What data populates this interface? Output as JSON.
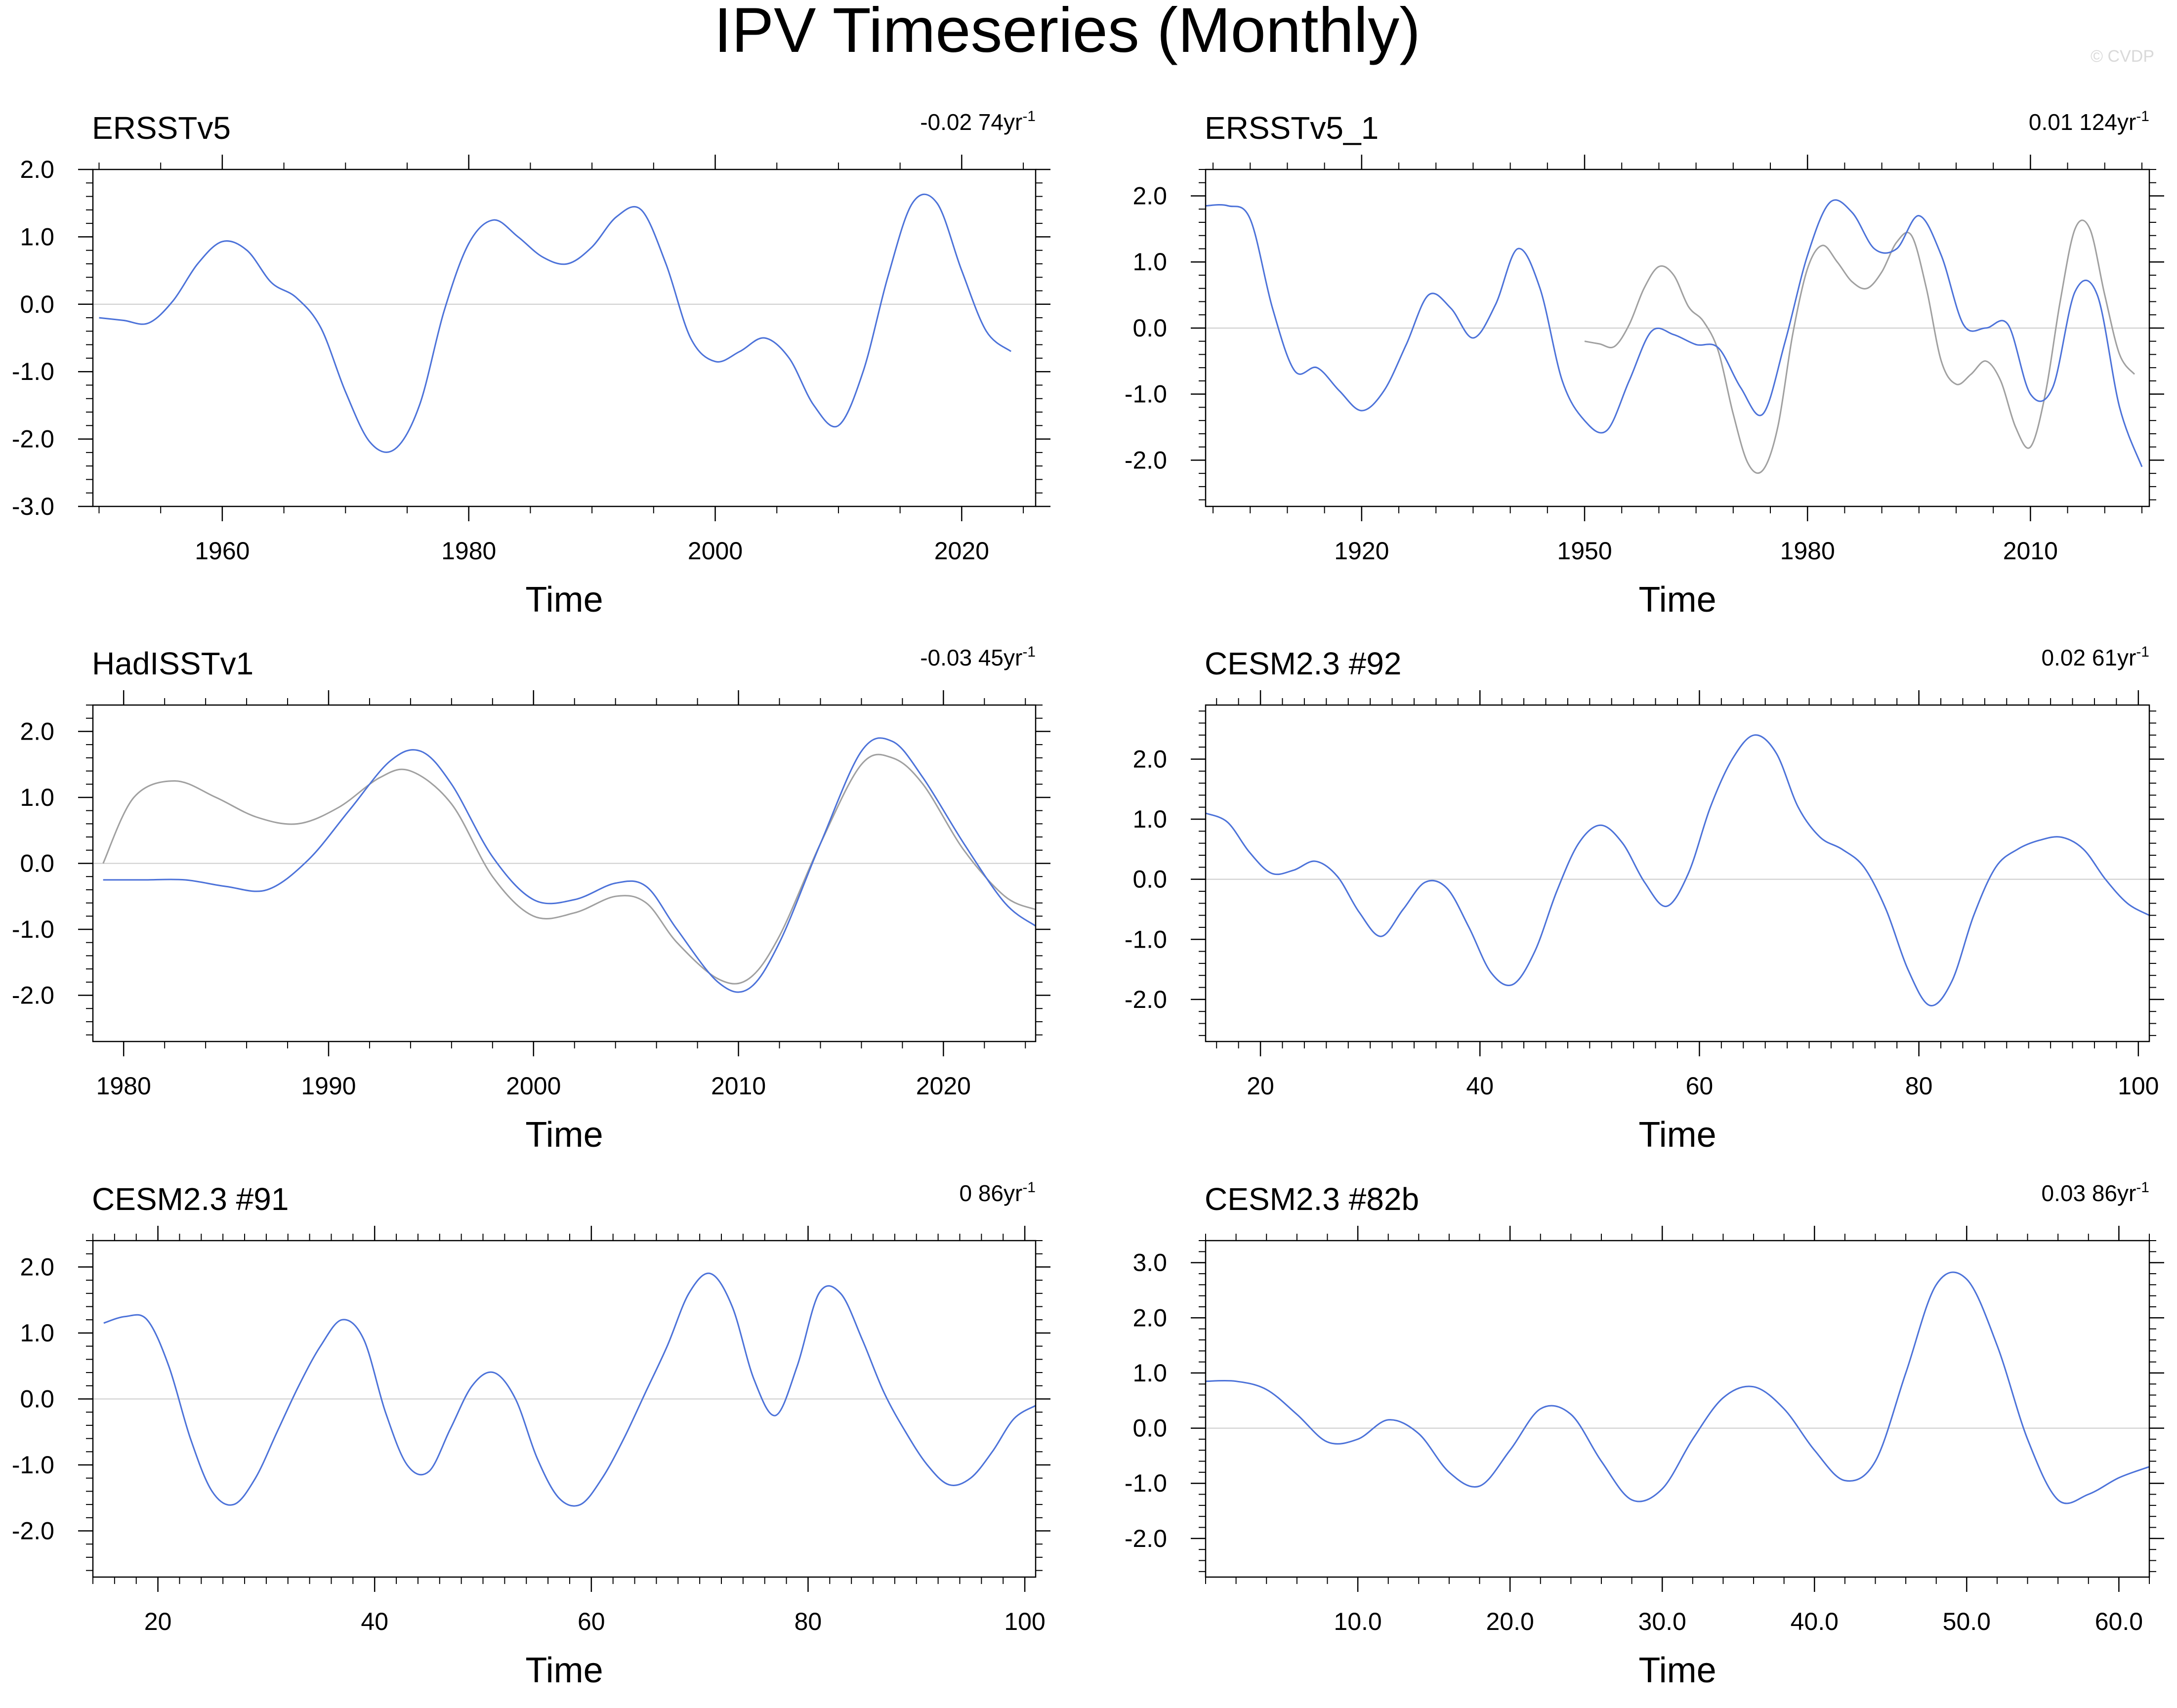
{
  "figure": {
    "title": "IPV Timeseries (Monthly)",
    "watermark": "© CVDP"
  },
  "colors": {
    "primary_series": "#4c72d9",
    "reference_series": "#a0a0a0",
    "zero_line": "#cccccc",
    "axis": "#000000"
  },
  "chart_data": [
    {
      "type": "line",
      "title": "ERSSTv5",
      "trend": "-0.02 74yr",
      "trend_exponent": "-1",
      "xlabel": "Time",
      "ylabel": "",
      "xlim": [
        1949.5,
        2026
      ],
      "ylim": [
        -3.0,
        2.0
      ],
      "xticks": [
        1960,
        1980,
        2000,
        2020
      ],
      "xticklabels": [
        "1960",
        "1980",
        "2000",
        "2020"
      ],
      "xminor_step": 5,
      "yticks": [
        -3.0,
        -2.0,
        -1.0,
        0.0,
        1.0,
        2.0
      ],
      "yticklabels": [
        "-3.0",
        "-2.0",
        "-1.0",
        "0.0",
        "1.0",
        "2.0"
      ],
      "yminor_step": 0.2,
      "series": [
        {
          "name": "ERSSTv5",
          "role": "primary",
          "x": [
            1950,
            1952,
            1954,
            1956,
            1958,
            1960,
            1962,
            1964,
            1966,
            1968,
            1970,
            1972,
            1974,
            1976,
            1978,
            1980,
            1982,
            1984,
            1986,
            1988,
            1990,
            1992,
            1994,
            1996,
            1998,
            2000,
            2002,
            2004,
            2006,
            2008,
            2010,
            2012,
            2014,
            2016,
            2018,
            2020,
            2022,
            2024
          ],
          "values": [
            -0.2,
            -0.24,
            -0.28,
            0.05,
            0.6,
            0.93,
            0.8,
            0.32,
            0.1,
            -0.35,
            -1.3,
            -2.05,
            -2.15,
            -1.5,
            -0.1,
            0.9,
            1.25,
            1.0,
            0.7,
            0.6,
            0.85,
            1.3,
            1.4,
            0.6,
            -0.5,
            -0.85,
            -0.7,
            -0.5,
            -0.8,
            -1.5,
            -1.8,
            -1.0,
            0.4,
            1.5,
            1.5,
            0.5,
            -0.4,
            -0.7
          ]
        }
      ]
    },
    {
      "type": "line",
      "title": "ERSSTv5_1",
      "trend": "0.01 124yr",
      "trend_exponent": "-1",
      "xlabel": "Time",
      "ylabel": "",
      "xlim": [
        1899,
        2026
      ],
      "ylim": [
        -2.7,
        2.4
      ],
      "xticks": [
        1920,
        1950,
        1980,
        2010
      ],
      "xticklabels": [
        "1920",
        "1950",
        "1980",
        "2010"
      ],
      "xminor_step": 5,
      "yticks": [
        -2.0,
        -1.0,
        0.0,
        1.0,
        2.0
      ],
      "yticklabels": [
        "-2.0",
        "-1.0",
        "0.0",
        "1.0",
        "2.0"
      ],
      "yminor_step": 0.2,
      "series": [
        {
          "name": "ERSSTv5_1",
          "role": "primary",
          "x": [
            1899,
            1902,
            1905,
            1908,
            1911,
            1914,
            1917,
            1920,
            1923,
            1926,
            1929,
            1932,
            1935,
            1938,
            1941,
            1944,
            1947,
            1950,
            1953,
            1956,
            1959,
            1962,
            1965,
            1968,
            1971,
            1974,
            1977,
            1980,
            1983,
            1986,
            1989,
            1992,
            1995,
            1998,
            2001,
            2004,
            2007,
            2010,
            2013,
            2016,
            2019,
            2022,
            2025
          ],
          "values": [
            1.85,
            1.85,
            1.65,
            0.3,
            -0.65,
            -0.6,
            -0.95,
            -1.25,
            -0.95,
            -0.25,
            0.5,
            0.3,
            -0.15,
            0.35,
            1.2,
            0.6,
            -0.8,
            -1.4,
            -1.55,
            -0.8,
            -0.05,
            -0.1,
            -0.25,
            -0.3,
            -0.9,
            -1.3,
            -0.2,
            1.1,
            1.9,
            1.75,
            1.2,
            1.2,
            1.7,
            1.1,
            0.05,
            0.0,
            0.05,
            -1.0,
            -0.9,
            0.55,
            0.5,
            -1.2,
            -2.1
          ]
        },
        {
          "name": "ERSSTv5",
          "role": "reference",
          "x": [
            1950,
            1952,
            1954,
            1956,
            1958,
            1960,
            1962,
            1964,
            1966,
            1968,
            1970,
            1972,
            1974,
            1976,
            1978,
            1980,
            1982,
            1984,
            1986,
            1988,
            1990,
            1992,
            1994,
            1996,
            1998,
            2000,
            2002,
            2004,
            2006,
            2008,
            2010,
            2012,
            2014,
            2016,
            2018,
            2020,
            2022,
            2024
          ],
          "values": [
            -0.2,
            -0.24,
            -0.28,
            0.05,
            0.6,
            0.93,
            0.8,
            0.32,
            0.1,
            -0.35,
            -1.3,
            -2.05,
            -2.15,
            -1.5,
            -0.1,
            0.9,
            1.25,
            1.0,
            0.7,
            0.6,
            0.85,
            1.3,
            1.4,
            0.6,
            -0.5,
            -0.85,
            -0.7,
            -0.5,
            -0.8,
            -1.5,
            -1.8,
            -1.0,
            0.4,
            1.5,
            1.5,
            0.5,
            -0.4,
            -0.7
          ]
        }
      ]
    },
    {
      "type": "line",
      "title": "HadISSTv1",
      "trend": "-0.03 45yr",
      "trend_exponent": "-1",
      "xlabel": "Time",
      "ylabel": "",
      "xlim": [
        1978.5,
        2024.5
      ],
      "ylim": [
        -2.7,
        2.4
      ],
      "xticks": [
        1980,
        1990,
        2000,
        2010,
        2020
      ],
      "xticklabels": [
        "1980",
        "1990",
        "2000",
        "2010",
        "2020"
      ],
      "xminor_step": 2,
      "yticks": [
        -2.0,
        -1.0,
        0.0,
        1.0,
        2.0
      ],
      "yticklabels": [
        "-2.0",
        "-1.0",
        "0.0",
        "1.0",
        "2.0"
      ],
      "yminor_step": 0.2,
      "series": [
        {
          "name": "HadISSTv1",
          "role": "primary",
          "x": [
            1979,
            1981,
            1983,
            1985,
            1987,
            1989,
            1991,
            1993,
            1994.5,
            1996,
            1998,
            2000,
            2002,
            2004,
            2005.5,
            2007,
            2009,
            2010.5,
            2012,
            2014,
            2016,
            2017.5,
            2019,
            2021,
            2023,
            2024.5
          ],
          "values": [
            -0.25,
            -0.25,
            -0.25,
            -0.35,
            -0.4,
            0.05,
            0.8,
            1.55,
            1.7,
            1.2,
            0.1,
            -0.55,
            -0.55,
            -0.3,
            -0.35,
            -1.0,
            -1.8,
            -1.9,
            -1.2,
            0.3,
            1.7,
            1.85,
            1.3,
            0.3,
            -0.6,
            -0.95
          ]
        },
        {
          "name": "ERSSTv5",
          "role": "reference",
          "x": [
            1979,
            1980.5,
            1982.5,
            1984.5,
            1986.5,
            1988.5,
            1990.5,
            1992.5,
            1994,
            1996,
            1998,
            2000,
            2002,
            2004,
            2005.5,
            2007,
            2009,
            2010.5,
            2012,
            2014,
            2016,
            2017.5,
            2019,
            2021,
            2023,
            2024.5
          ],
          "values": [
            0.0,
            1.0,
            1.25,
            1.0,
            0.7,
            0.6,
            0.85,
            1.3,
            1.4,
            0.9,
            -0.2,
            -0.8,
            -0.75,
            -0.5,
            -0.6,
            -1.2,
            -1.75,
            -1.75,
            -1.1,
            0.3,
            1.5,
            1.6,
            1.2,
            0.2,
            -0.5,
            -0.7
          ]
        }
      ]
    },
    {
      "type": "line",
      "title": "CESM2.3 #92",
      "trend": "0.02 61yr",
      "trend_exponent": "-1",
      "xlabel": "Time",
      "ylabel": "",
      "xlim": [
        15,
        101
      ],
      "ylim": [
        -2.7,
        2.9
      ],
      "xticks": [
        20,
        40,
        60,
        80,
        100
      ],
      "xticklabels": [
        "20",
        "40",
        "60",
        "80",
        "100"
      ],
      "xminor_step": 2,
      "yticks": [
        -2.0,
        -1.0,
        0.0,
        1.0,
        2.0
      ],
      "yticklabels": [
        "-2.0",
        "-1.0",
        "0.0",
        "1.0",
        "2.0"
      ],
      "yminor_step": 0.2,
      "series": [
        {
          "name": "CESM2.3 #92",
          "role": "primary",
          "x": [
            15,
            17,
            19,
            21,
            23,
            25,
            27,
            29,
            31,
            33,
            35,
            37,
            39,
            41,
            43,
            45,
            47,
            49,
            51,
            53,
            55,
            57,
            59,
            61,
            63,
            65,
            67,
            69,
            71,
            73,
            75,
            77,
            79,
            81,
            83,
            85,
            87,
            89,
            91,
            93,
            95,
            97,
            99,
            101
          ],
          "values": [
            1.1,
            0.95,
            0.45,
            0.1,
            0.15,
            0.3,
            0.05,
            -0.55,
            -0.95,
            -0.5,
            -0.05,
            -0.15,
            -0.8,
            -1.55,
            -1.75,
            -1.2,
            -0.2,
            0.6,
            0.9,
            0.6,
            -0.05,
            -0.45,
            0.1,
            1.2,
            2.0,
            2.4,
            2.1,
            1.2,
            0.7,
            0.5,
            0.2,
            -0.5,
            -1.5,
            -2.1,
            -1.7,
            -0.6,
            0.2,
            0.5,
            0.65,
            0.7,
            0.5,
            0.0,
            -0.4,
            -0.6
          ]
        }
      ]
    },
    {
      "type": "line",
      "title": "CESM2.3 #91",
      "trend": "0 86yr",
      "trend_exponent": "-1",
      "xlabel": "Time",
      "ylabel": "",
      "xlim": [
        14,
        101
      ],
      "ylim": [
        -2.7,
        2.4
      ],
      "xticks": [
        20,
        40,
        60,
        80,
        100
      ],
      "xticklabels": [
        "20",
        "40",
        "60",
        "80",
        "100"
      ],
      "xminor_step": 2,
      "yticks": [
        -2.0,
        -1.0,
        0.0,
        1.0,
        2.0
      ],
      "yticklabels": [
        "-2.0",
        "-1.0",
        "0.0",
        "1.0",
        "2.0"
      ],
      "yminor_step": 0.2,
      "series": [
        {
          "name": "CESM2.3 #91",
          "role": "primary",
          "x": [
            15,
            17,
            19,
            21,
            23,
            25,
            27,
            29,
            31,
            33,
            35,
            37,
            39,
            41,
            43,
            45,
            47,
            49,
            51,
            53,
            55,
            57,
            59,
            61,
            63,
            65,
            67,
            69,
            71,
            73,
            75,
            77,
            79,
            81,
            83,
            85,
            87,
            89,
            91,
            93,
            95,
            97,
            99,
            101
          ],
          "values": [
            1.15,
            1.25,
            1.2,
            0.5,
            -0.6,
            -1.4,
            -1.6,
            -1.2,
            -0.5,
            0.2,
            0.8,
            1.2,
            0.9,
            -0.2,
            -1.0,
            -1.1,
            -0.45,
            0.2,
            0.4,
            0.0,
            -0.9,
            -1.5,
            -1.6,
            -1.2,
            -0.6,
            0.1,
            0.8,
            1.6,
            1.9,
            1.4,
            0.3,
            -0.25,
            0.5,
            1.6,
            1.6,
            0.9,
            0.1,
            -0.5,
            -1.0,
            -1.3,
            -1.2,
            -0.8,
            -0.3,
            -0.1
          ]
        }
      ]
    },
    {
      "type": "line",
      "title": "CESM2.3 #82b",
      "trend": "0.03 86yr",
      "trend_exponent": "-1",
      "xlabel": "Time",
      "ylabel": "",
      "xlim": [
        0,
        62
      ],
      "ylim": [
        -2.7,
        3.4
      ],
      "xticks": [
        10,
        20,
        30,
        40,
        50,
        60
      ],
      "xticklabels": [
        "10.0",
        "20.0",
        "30.0",
        "40.0",
        "50.0",
        "60.0"
      ],
      "xminor_step": 2,
      "yticks": [
        -2.0,
        -1.0,
        0.0,
        1.0,
        2.0,
        3.0
      ],
      "yticklabels": [
        "-2.0",
        "-1.0",
        "0.0",
        "1.0",
        "2.0",
        "3.0"
      ],
      "yminor_step": 0.2,
      "series": [
        {
          "name": "CESM2.3 #82b",
          "role": "primary",
          "x": [
            0,
            2,
            4,
            6,
            8,
            10,
            12,
            14,
            16,
            18,
            20,
            22,
            24,
            26,
            28,
            30,
            32,
            34,
            36,
            38,
            40,
            42,
            44,
            46,
            48,
            50,
            52,
            54,
            56,
            58,
            60,
            62
          ],
          "values": [
            0.85,
            0.85,
            0.7,
            0.25,
            -0.25,
            -0.2,
            0.15,
            -0.1,
            -0.8,
            -1.05,
            -0.4,
            0.35,
            0.25,
            -0.6,
            -1.3,
            -1.1,
            -0.2,
            0.55,
            0.75,
            0.35,
            -0.4,
            -0.95,
            -0.6,
            1.0,
            2.6,
            2.7,
            1.5,
            -0.2,
            -1.3,
            -1.2,
            -0.9,
            -0.7
          ]
        }
      ]
    }
  ]
}
